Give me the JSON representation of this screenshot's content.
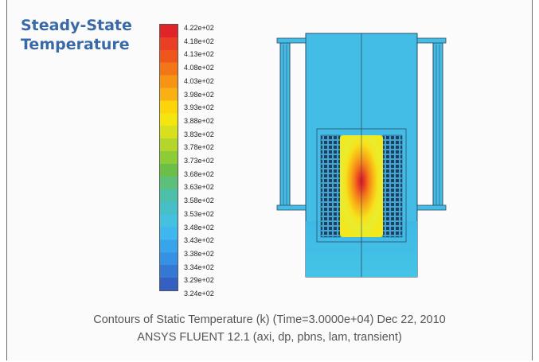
{
  "title": {
    "line1": "Steady-State",
    "line2": "Temperature"
  },
  "colorbar": {
    "labels": [
      "4.22e+02",
      "4.18e+02",
      "4.13e+02",
      "4.08e+02",
      "4.03e+02",
      "3.98e+02",
      "3.93e+02",
      "3.88e+02",
      "3.83e+02",
      "3.78e+02",
      "3.73e+02",
      "3.68e+02",
      "3.63e+02",
      "3.58e+02",
      "3.53e+02",
      "3.48e+02",
      "3.43e+02",
      "3.38e+02",
      "3.34e+02",
      "3.29e+02",
      "3.24e+02"
    ],
    "colors": [
      "#e0242a",
      "#ea3f22",
      "#f0561c",
      "#f47418",
      "#f89414",
      "#f9b012",
      "#fcd40a",
      "#f3e50e",
      "#d8e01e",
      "#b4d62a",
      "#8ccc34",
      "#6bbf46",
      "#5cc07a",
      "#4cc0a8",
      "#46c0c6",
      "#44c0e0",
      "#3eb6ee",
      "#38a4ec",
      "#3690e4",
      "#3478d6",
      "#3460c2"
    ]
  },
  "caption": {
    "line1": "Contours of Static Temperature (k)  (Time=3.0000e+04)     Dec 22, 2010",
    "line2": "ANSYS FLUENT 12.1 (axi, dp, pbns, lam, transient)"
  }
}
